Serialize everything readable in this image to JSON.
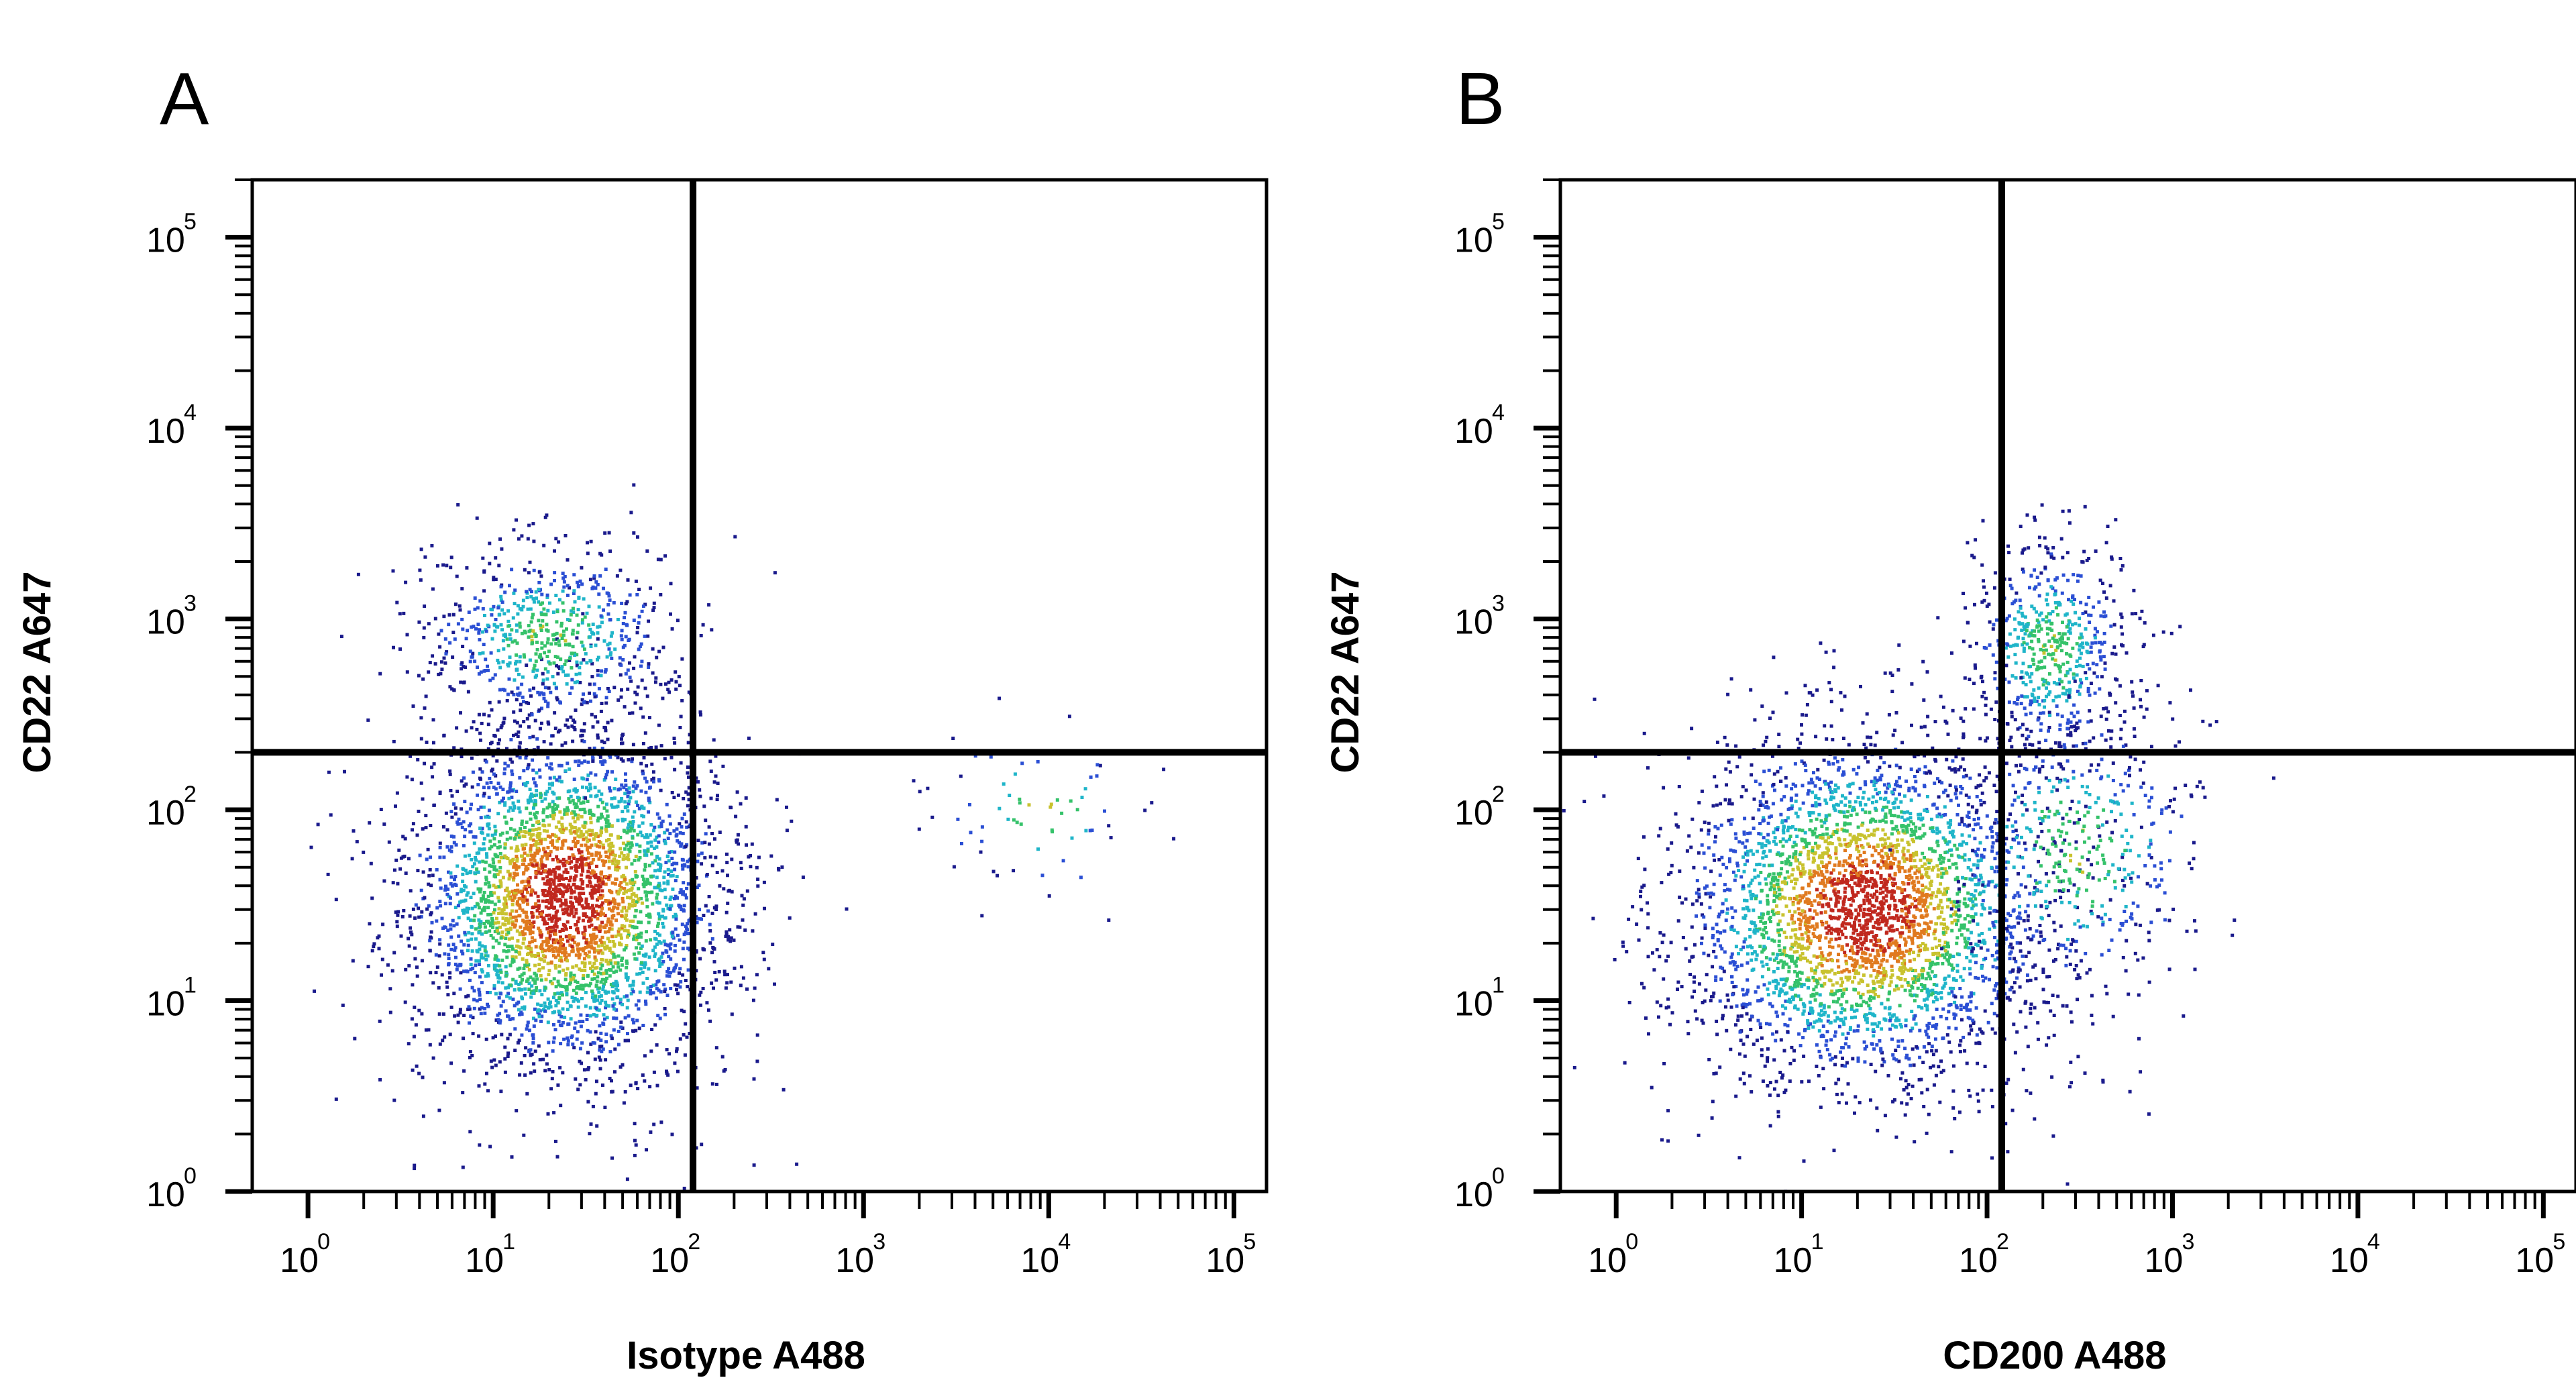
{
  "chart_data": [
    {
      "panel": "A",
      "type": "scatter",
      "xlabel": "Isotype A488",
      "ylabel": "CD22 A647",
      "x_scale": "log",
      "y_scale": "log",
      "xlim": [
        0.5,
        150000
      ],
      "ylim": [
        1,
        200000
      ],
      "x_ticks": [
        "10^0",
        "10^1",
        "10^2",
        "10^3",
        "10^4",
        "10^5"
      ],
      "y_ticks": [
        "10^0",
        "10^1",
        "10^2",
        "10^3",
        "10^4",
        "10^5"
      ],
      "quadrant_gate": {
        "x": 120,
        "y": 200
      },
      "populations": [
        {
          "x_center": 25,
          "y_center": 35,
          "x_spread_dec": 0.42,
          "y_spread_dec": 0.45,
          "count": 3600
        },
        {
          "x_center": 20,
          "y_center": 800,
          "x_spread_dec": 0.35,
          "y_spread_dec": 0.25,
          "count": 700
        },
        {
          "x_center": 9000,
          "y_center": 100,
          "x_spread_dec": 0.3,
          "y_spread_dec": 0.25,
          "count": 70
        }
      ],
      "color_scale": [
        "#1a1a8c",
        "#2b4fd4",
        "#1fb5c9",
        "#35c26a",
        "#c8c22e",
        "#e07a1f",
        "#c0281e"
      ],
      "grid": false
    },
    {
      "panel": "B",
      "type": "scatter",
      "xlabel": "CD200 A488",
      "ylabel": "CD22 A647",
      "x_scale": "log",
      "y_scale": "log",
      "xlim": [
        0.5,
        150000
      ],
      "ylim": [
        1,
        200000
      ],
      "x_ticks": [
        "10^0",
        "10^1",
        "10^2",
        "10^3",
        "10^4",
        "10^5"
      ],
      "y_ticks": [
        "10^0",
        "10^1",
        "10^2",
        "10^3",
        "10^4",
        "10^5"
      ],
      "quadrant_gate": {
        "x": 120,
        "y": 200
      },
      "populations": [
        {
          "x_center": 22,
          "y_center": 30,
          "x_spread_dec": 0.5,
          "y_spread_dec": 0.45,
          "count": 3600
        },
        {
          "x_center": 220,
          "y_center": 700,
          "x_spread_dec": 0.22,
          "y_spread_dec": 0.3,
          "count": 600
        },
        {
          "x_center": 300,
          "y_center": 60,
          "x_spread_dec": 0.35,
          "y_spread_dec": 0.4,
          "count": 450
        }
      ],
      "color_scale": [
        "#1a1a8c",
        "#2b4fd4",
        "#1fb5c9",
        "#35c26a",
        "#c8c22e",
        "#e07a1f",
        "#c0281e"
      ],
      "grid": false
    }
  ]
}
